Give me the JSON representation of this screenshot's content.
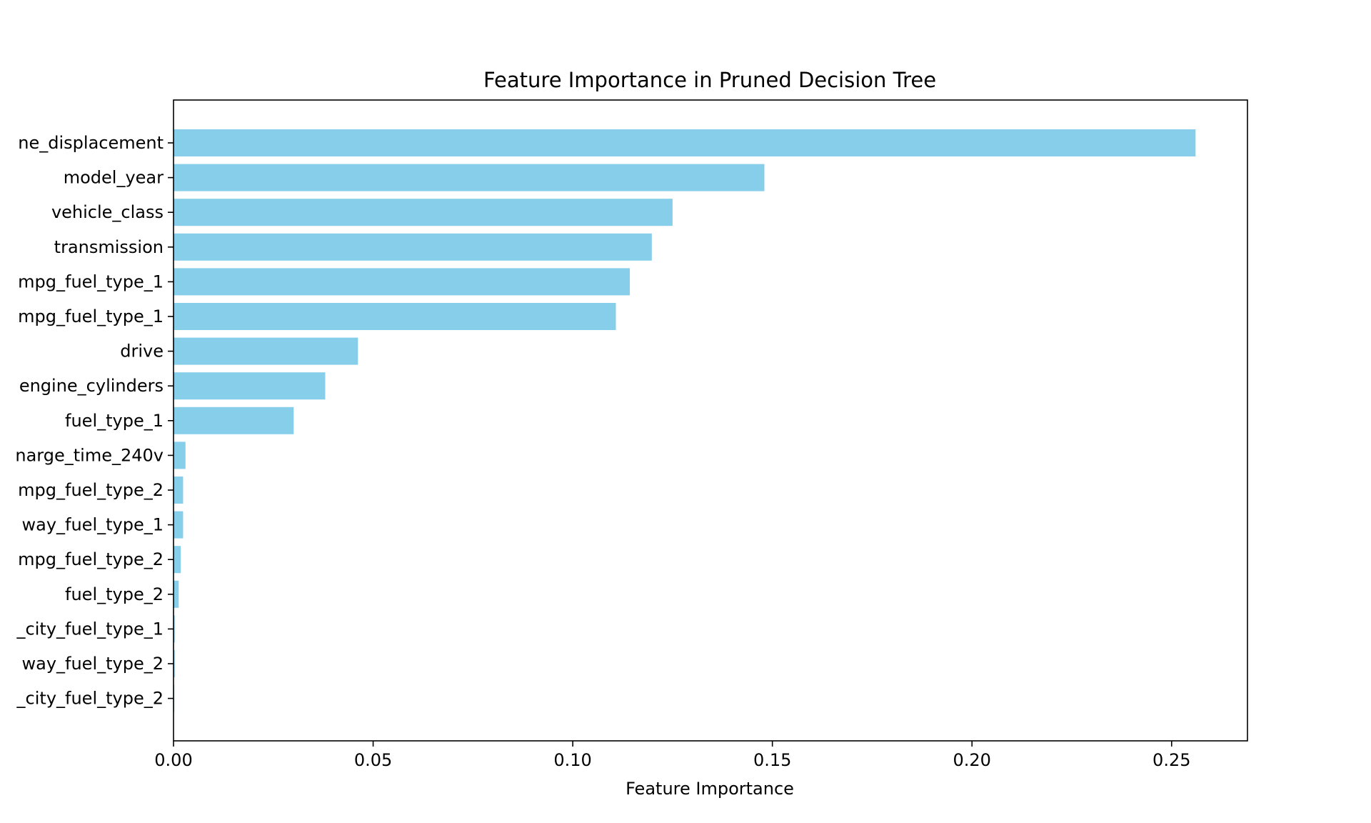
{
  "chart_data": {
    "type": "bar",
    "orientation": "horizontal",
    "title": "Feature Importance in Pruned Decision Tree",
    "xlabel": "Feature Importance",
    "ylabel": "",
    "xlim": [
      0,
      0.269
    ],
    "xticks": [
      0.0,
      0.05,
      0.1,
      0.15,
      0.2,
      0.25
    ],
    "xtick_labels": [
      "0.00",
      "0.05",
      "0.10",
      "0.15",
      "0.20",
      "0.25"
    ],
    "grid": false,
    "bar_color": "#87ceeb",
    "categories": [
      "ne_displacement",
      "model_year",
      "vehicle_class",
      "transmission",
      "mpg_fuel_type_1",
      "mpg_fuel_type_1",
      "drive",
      "engine_cylinders",
      "fuel_type_1",
      "narge_time_240v",
      "mpg_fuel_type_2",
      "way_fuel_type_1",
      "mpg_fuel_type_2",
      "fuel_type_2",
      "_city_fuel_type_1",
      "way_fuel_type_2",
      "_city_fuel_type_2"
    ],
    "values": [
      0.256,
      0.148,
      0.125,
      0.1198,
      0.1143,
      0.1108,
      0.0462,
      0.038,
      0.0301,
      0.003,
      0.0024,
      0.0024,
      0.0018,
      0.0013,
      0.0003,
      0.0003,
      0.0002
    ]
  }
}
